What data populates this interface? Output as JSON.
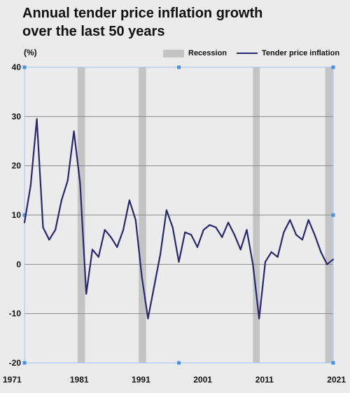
{
  "header": {
    "title_line1": "Annual tender price inflation growth",
    "title_line2": "over the last 50 years"
  },
  "chart_data": {
    "type": "line",
    "title": "Annual tender price inflation growth over the last 50 years",
    "ylabel": "(%)",
    "xlabel": "",
    "ylim": [
      -20,
      40
    ],
    "xlim": [
      1971,
      2021
    ],
    "yticks": [
      40,
      30,
      20,
      10,
      0,
      -10,
      -20
    ],
    "xticks": [
      1971,
      1981,
      1991,
      2001,
      2011,
      2021
    ],
    "grid": "horizontal",
    "legend": {
      "position": "top-right",
      "entries": [
        {
          "label": "Recession",
          "type": "band",
          "color": "#c4c4c4"
        },
        {
          "label": "Tender price inflation",
          "type": "line",
          "color": "#2a2670"
        }
      ]
    },
    "recessions": [
      {
        "start": 1979.6,
        "end": 1980.8
      },
      {
        "start": 1989.5,
        "end": 1990.7
      },
      {
        "start": 2008.0,
        "end": 2009.1
      },
      {
        "start": 2019.7,
        "end": 2020.9
      }
    ],
    "series": [
      {
        "name": "Tender price inflation",
        "color": "#2a2670",
        "x": [
          1971,
          1972,
          1973,
          1974,
          1975,
          1976,
          1977,
          1978,
          1979,
          1980,
          1981,
          1982,
          1983,
          1984,
          1985,
          1986,
          1987,
          1988,
          1989,
          1990,
          1991,
          1992,
          1993,
          1994,
          1995,
          1996,
          1997,
          1998,
          1999,
          2000,
          2001,
          2002,
          2003,
          2004,
          2005,
          2006,
          2007,
          2008,
          2009,
          2010,
          2011,
          2012,
          2013,
          2014,
          2015,
          2016,
          2017,
          2018,
          2019,
          2020,
          2021
        ],
        "values": [
          8.5,
          16,
          29.5,
          7.5,
          5,
          7,
          13,
          17,
          27,
          16.5,
          -6,
          3,
          1.5,
          7,
          5.5,
          3.5,
          7,
          13,
          9,
          -2.5,
          -11,
          -4.5,
          2,
          11,
          7.5,
          0.5,
          6.5,
          6,
          3.5,
          7,
          8,
          7.5,
          5.5,
          8.5,
          6,
          3,
          7,
          0,
          -11,
          0.5,
          2.5,
          1.5,
          6.5,
          9,
          6,
          5,
          9,
          6,
          2.5,
          0,
          1
        ]
      }
    ]
  }
}
